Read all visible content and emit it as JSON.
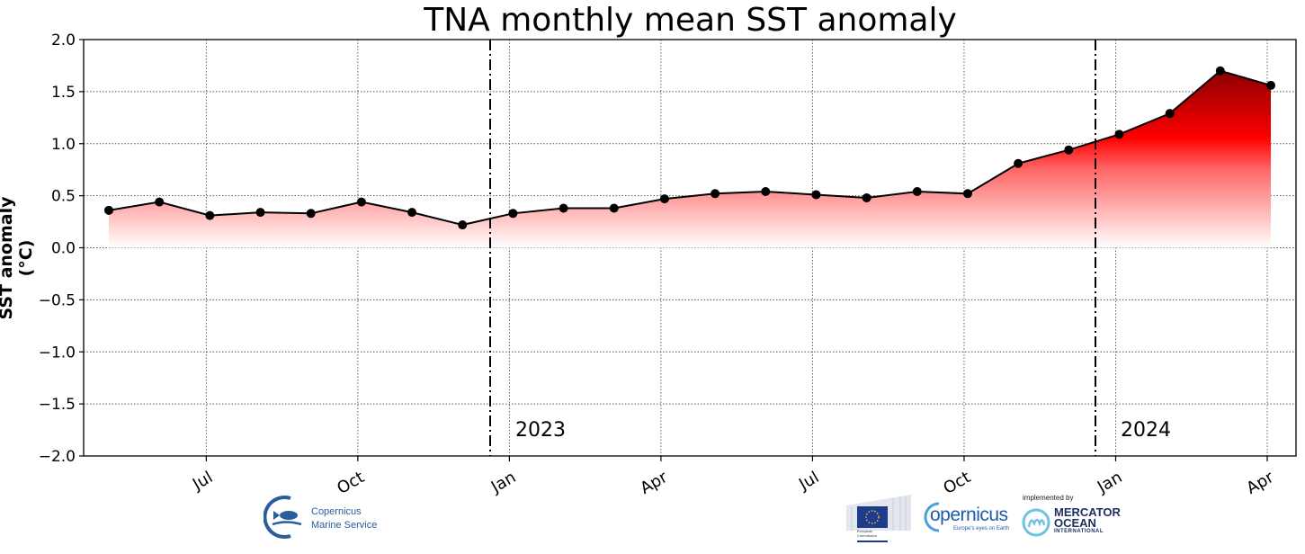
{
  "chart_data": {
    "type": "area",
    "title": "TNA monthly mean SST anomaly",
    "xlabel": "",
    "ylabel": "SST anomaly (°C)",
    "ylim": [
      -2.0,
      2.0
    ],
    "yticks": [
      "2.0",
      "1.5",
      "1.0",
      "0.5",
      "0.0",
      "−0.5",
      "−1.0",
      "−1.5",
      "−2.0"
    ],
    "ytick_values": [
      2.0,
      1.5,
      1.0,
      0.5,
      0.0,
      -0.5,
      -1.0,
      -1.5,
      -2.0
    ],
    "xticks": [
      "Jul",
      "Oct",
      "Jan",
      "Apr",
      "Jul",
      "Oct",
      "Jan",
      "Apr"
    ],
    "grid": true,
    "year_markers": [
      {
        "label": "2023",
        "position": "end of Dec 2022"
      },
      {
        "label": "2024",
        "position": "end of Dec 2023"
      }
    ],
    "x": [
      "2022-05",
      "2022-06",
      "2022-07",
      "2022-08",
      "2022-09",
      "2022-10",
      "2022-11",
      "2022-12",
      "2023-01",
      "2023-02",
      "2023-03",
      "2023-04",
      "2023-05",
      "2023-06",
      "2023-07",
      "2023-08",
      "2023-09",
      "2023-10",
      "2023-11",
      "2023-12",
      "2024-01",
      "2024-02",
      "2024-03",
      "2024-04"
    ],
    "series": [
      {
        "name": "SST anomaly",
        "values": [
          0.36,
          0.44,
          0.31,
          0.34,
          0.33,
          0.44,
          0.34,
          0.22,
          0.33,
          0.38,
          0.38,
          0.47,
          0.52,
          0.54,
          0.51,
          0.48,
          0.54,
          0.52,
          0.81,
          0.94,
          1.09,
          1.29,
          1.7,
          1.56
        ]
      }
    ],
    "fill": "gradient red (white at 0 → red at ~0.7 → dark red at 1.7)"
  },
  "logos": {
    "cms_line1": "Copernicus",
    "cms_line2": "Marine Service",
    "ec_line1": "European",
    "ec_line2": "Commission",
    "copernicus": "opernicus",
    "copernicus_c": "C",
    "copernicus_tagline": "Europe's eyes on Earth",
    "implemented_by": "implemented by",
    "mercator_1": "MERCATOR",
    "mercator_2": "OCEAN",
    "mercator_3": "INTERNATIONAL"
  }
}
